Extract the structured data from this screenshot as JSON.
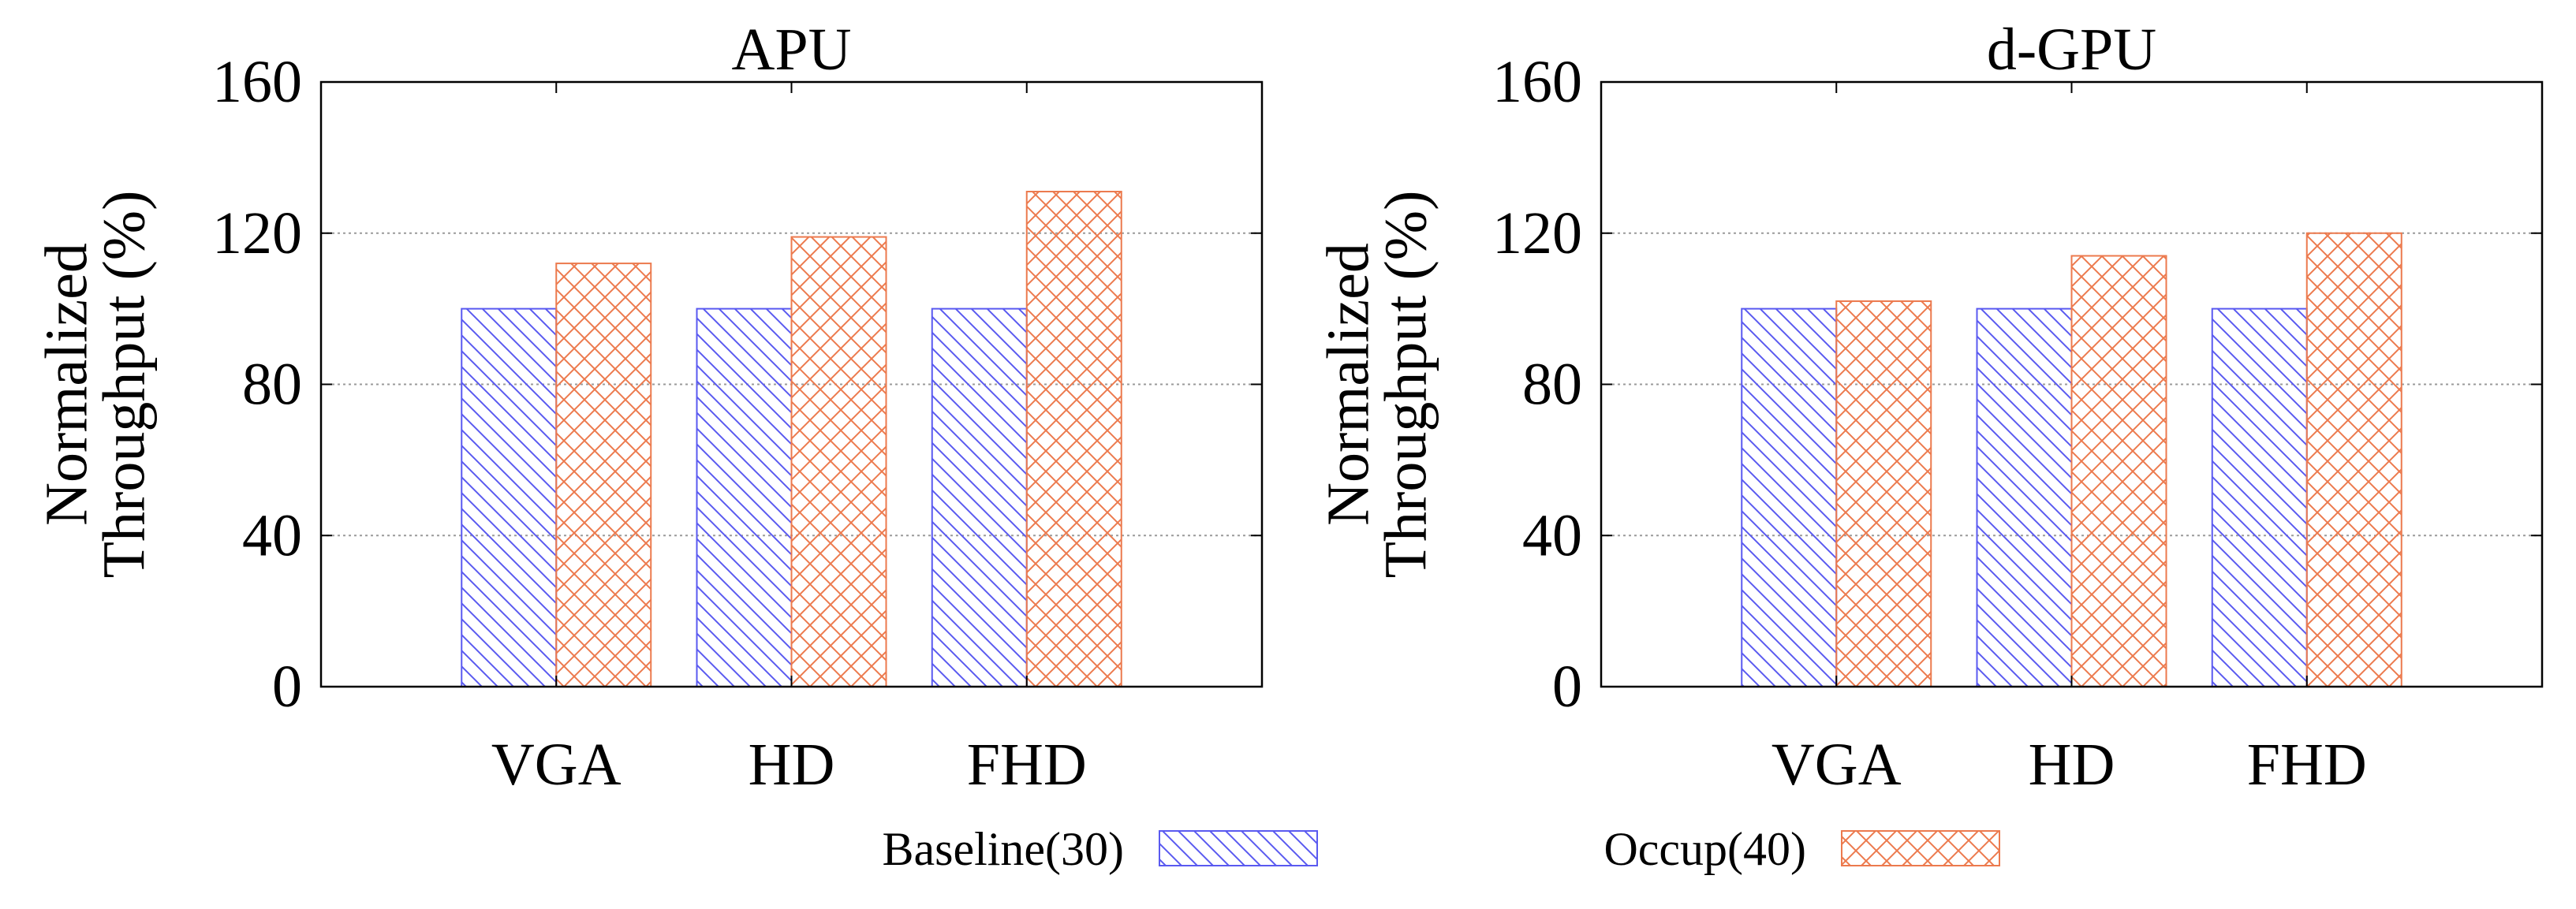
{
  "chart_data": [
    {
      "type": "bar",
      "title": "APU",
      "xlabel": "",
      "ylabel_lines": [
        "Normalized",
        "Throughput (%)"
      ],
      "categories": [
        "VGA",
        "HD",
        "FHD"
      ],
      "ylim": [
        0,
        160
      ],
      "yticks": [
        0,
        40,
        80,
        120,
        160
      ],
      "grid": true,
      "series": [
        {
          "name": "Baseline(30)",
          "values": [
            100,
            100,
            100
          ]
        },
        {
          "name": "Occup(40)",
          "values": [
            112,
            119,
            131
          ]
        }
      ]
    },
    {
      "type": "bar",
      "title": "d-GPU",
      "xlabel": "",
      "ylabel_lines": [
        "Normalized",
        "Throughput (%)"
      ],
      "categories": [
        "VGA",
        "HD",
        "FHD"
      ],
      "ylim": [
        0,
        160
      ],
      "yticks": [
        0,
        40,
        80,
        120,
        160
      ],
      "grid": true,
      "series": [
        {
          "name": "Baseline(30)",
          "values": [
            100,
            100,
            100
          ]
        },
        {
          "name": "Occup(40)",
          "values": [
            102,
            114,
            120
          ]
        }
      ]
    }
  ],
  "legend": {
    "placement": "bottom",
    "items": [
      {
        "label": "Baseline(30)",
        "pattern": "diagonal",
        "color": "#5a5af0"
      },
      {
        "label": "Occup(40)",
        "pattern": "crosshatch",
        "color": "#ec7a4e"
      }
    ]
  },
  "colors": {
    "baseline": "#5a5af0",
    "occup": "#ec7a4e",
    "axis": "#000000",
    "grid": "#9a9a9a"
  }
}
